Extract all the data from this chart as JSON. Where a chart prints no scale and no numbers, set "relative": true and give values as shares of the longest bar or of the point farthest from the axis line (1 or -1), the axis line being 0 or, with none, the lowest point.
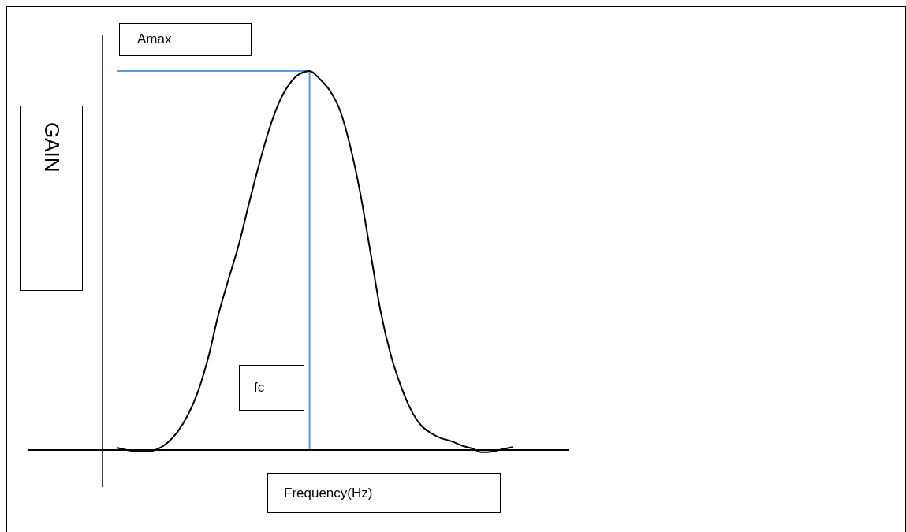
{
  "chart_data": {
    "type": "line",
    "relative": true,
    "xlabel": "Frequency(Hz)",
    "ylabel": "GAIN",
    "categories": [
      null,
      null,
      null,
      null,
      null,
      null,
      null,
      null,
      null,
      null,
      null,
      null,
      null,
      null,
      null,
      null,
      null,
      null,
      null,
      null,
      null,
      null,
      null,
      null,
      null,
      null,
      null,
      null,
      null,
      null,
      null,
      null,
      null,
      null,
      null,
      null,
      null,
      null,
      null,
      null
    ],
    "series": [
      {
        "color": "#000000",
        "values": [
          0.004,
          -0.002,
          -0.006,
          -0.006,
          0,
          0.017,
          0.046,
          0.09,
          0.152,
          0.24,
          0.354,
          0.448,
          0.538,
          0.646,
          0.75,
          0.844,
          0.917,
          0.965,
          0.992,
          1,
          0.979,
          0.948,
          0.896,
          0.802,
          0.677,
          0.521,
          0.365,
          0.25,
          0.167,
          0.104,
          0.063,
          0.042,
          0.029,
          0.021,
          0.01,
          0.002,
          -0.008,
          -0.006,
          0,
          0.006
        ]
      }
    ],
    "ref_lines": [
      {
        "axis": "y",
        "value": 1,
        "label": "Amax",
        "color": "#5b9bd5"
      }
    ],
    "annotations": [
      "fc"
    ],
    "marker": "none",
    "line_style": "solid",
    "grid": false
  }
}
